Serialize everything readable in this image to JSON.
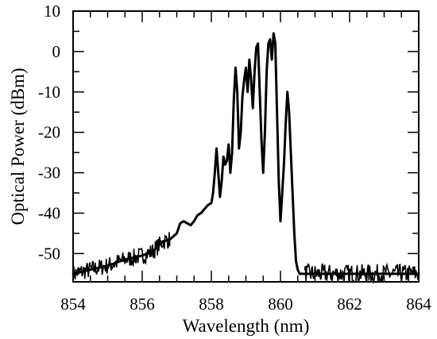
{
  "chart_data": {
    "type": "line",
    "title": "",
    "xlabel": "Wavelength (nm)",
    "ylabel": "Optical Power (dBm)",
    "xlim": [
      854,
      864
    ],
    "ylim": [
      -57,
      10
    ],
    "x_ticks": [
      854,
      856,
      858,
      860,
      862,
      864
    ],
    "x_tick_labels": [
      "854",
      "856",
      "858",
      "860",
      "862",
      "864"
    ],
    "y_ticks": [
      10,
      0,
      -10,
      -20,
      -30,
      -40,
      -50
    ],
    "y_tick_labels": [
      "10",
      "0",
      "-10",
      "-20",
      "-30",
      "-40",
      "-50"
    ],
    "grid": false,
    "legend": "none",
    "line_color": "#000000",
    "series": [
      {
        "x": [
          854.0,
          854.5,
          855.0,
          855.5,
          856.0,
          856.3,
          856.6,
          856.8,
          857.0,
          857.1,
          857.2,
          857.3,
          857.4,
          857.5,
          857.6,
          857.7,
          857.8,
          857.9,
          858.0,
          858.05,
          858.1,
          858.15,
          858.2,
          858.25,
          858.3,
          858.35,
          858.4,
          858.45,
          858.5,
          858.55,
          858.6,
          858.65,
          858.7,
          858.75,
          858.8,
          858.85,
          858.9,
          858.95,
          859.0,
          859.05,
          859.1,
          859.15,
          859.2,
          859.25,
          859.3,
          859.35,
          859.4,
          859.45,
          859.5,
          859.55,
          859.6,
          859.65,
          859.7,
          859.75,
          859.8,
          859.85,
          859.9,
          859.95,
          860.0,
          860.05,
          860.1,
          860.15,
          860.2,
          860.25,
          860.3,
          860.35,
          860.4,
          860.45,
          860.5,
          860.55,
          860.6,
          860.7,
          860.8,
          861.0,
          861.5,
          862.0,
          862.5,
          863.0,
          863.5,
          864.0
        ],
        "y": [
          -55,
          -54,
          -53,
          -51.5,
          -50.5,
          -49.5,
          -47,
          -46.5,
          -45,
          -42.5,
          -42,
          -42.5,
          -43,
          -42,
          -40.5,
          -40,
          -39,
          -38,
          -37.5,
          -35,
          -30,
          -24,
          -30,
          -36,
          -32,
          -26,
          -28,
          -27,
          -23,
          -30,
          -25,
          -12,
          -4,
          -10,
          -24,
          -20,
          -11,
          -7,
          -4,
          -10,
          -2,
          -7,
          -14,
          -5,
          1,
          2,
          -10,
          -22,
          -30,
          -20,
          -5,
          2,
          3,
          -2,
          4.5,
          2,
          -15,
          -32,
          -42,
          -35,
          -28,
          -18,
          -10,
          -15,
          -25,
          -35,
          -45,
          -52,
          -54,
          -55,
          -55,
          -55,
          -55,
          -55,
          -55,
          -55,
          -55,
          -55,
          -55,
          -55
        ]
      }
    ]
  }
}
